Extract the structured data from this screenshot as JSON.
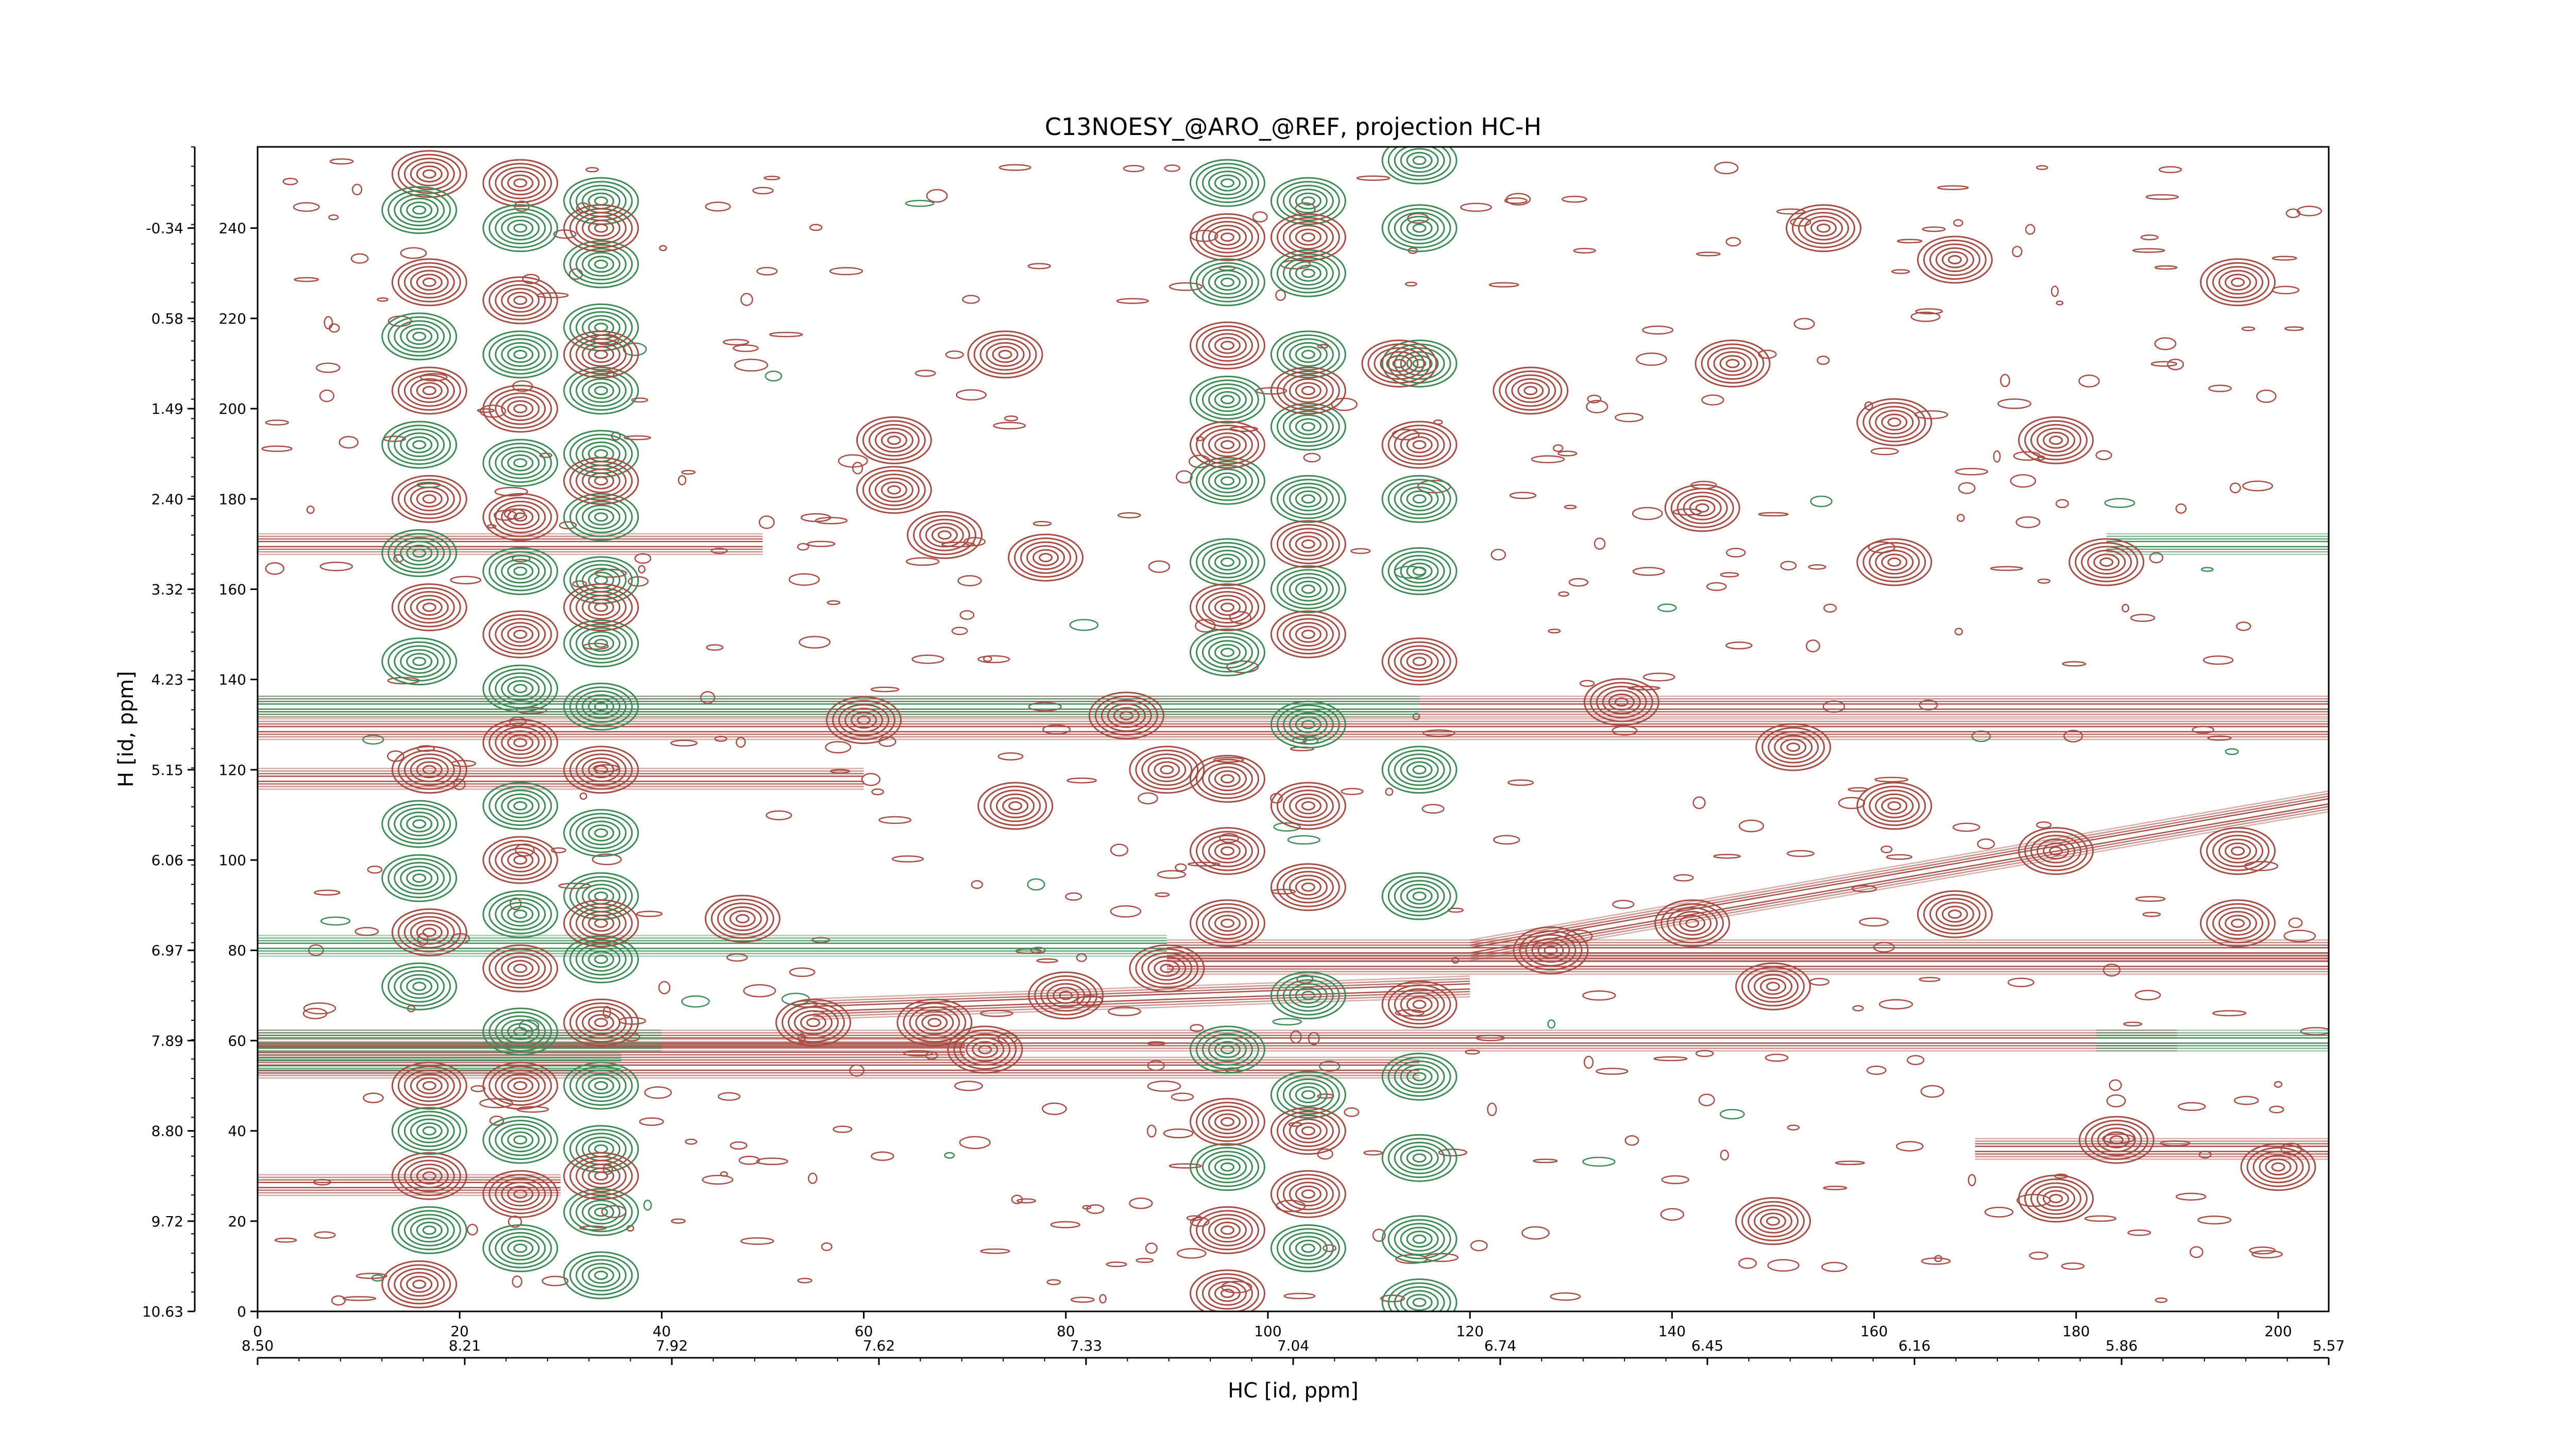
{
  "chart_data": {
    "type": "contour",
    "title": "C13NOESY_@ARO_@REF, projection HC-H",
    "xlabel": "HC [id, ppm]",
    "ylabel": "H [id, ppm]",
    "x_point_range": [
      0,
      205
    ],
    "y_point_range": [
      0,
      258
    ],
    "x_ticks": [
      0,
      20,
      40,
      60,
      80,
      100,
      120,
      140,
      160,
      180,
      200
    ],
    "y_ticks": [
      0,
      20,
      40,
      60,
      80,
      100,
      120,
      140,
      160,
      180,
      200,
      220,
      240
    ],
    "x_ppm_labels": [
      "8.50",
      "8.21",
      "7.92",
      "7.62",
      "7.33",
      "7.04",
      "6.74",
      "6.45",
      "6.16",
      "5.86",
      "5.57"
    ],
    "y_ppm_labels": [
      "10.63",
      "9.72",
      "8.80",
      "7.89",
      "6.97",
      "6.06",
      "5.15",
      "4.23",
      "3.32",
      "2.40",
      "1.49",
      "0.58",
      "-0.34"
    ],
    "colors": {
      "positive": "#a84c44",
      "negative": "#3d8c57"
    },
    "peaks": [
      {
        "x": 17,
        "y": 252,
        "sign": "pos"
      },
      {
        "x": 17,
        "y": 228,
        "sign": "pos"
      },
      {
        "x": 17,
        "y": 204,
        "sign": "pos"
      },
      {
        "x": 17,
        "y": 180,
        "sign": "pos"
      },
      {
        "x": 17,
        "y": 156,
        "sign": "pos"
      },
      {
        "x": 17,
        "y": 120,
        "sign": "pos"
      },
      {
        "x": 17,
        "y": 84,
        "sign": "pos"
      },
      {
        "x": 17,
        "y": 50,
        "sign": "pos"
      },
      {
        "x": 17,
        "y": 30,
        "sign": "pos"
      },
      {
        "x": 16,
        "y": 6,
        "sign": "pos"
      },
      {
        "x": 16,
        "y": 244,
        "sign": "neg"
      },
      {
        "x": 16,
        "y": 216,
        "sign": "neg"
      },
      {
        "x": 16,
        "y": 192,
        "sign": "neg"
      },
      {
        "x": 16,
        "y": 168,
        "sign": "neg"
      },
      {
        "x": 16,
        "y": 144,
        "sign": "neg"
      },
      {
        "x": 16,
        "y": 108,
        "sign": "neg"
      },
      {
        "x": 16,
        "y": 96,
        "sign": "neg"
      },
      {
        "x": 16,
        "y": 72,
        "sign": "neg"
      },
      {
        "x": 17,
        "y": 40,
        "sign": "neg"
      },
      {
        "x": 17,
        "y": 18,
        "sign": "neg"
      },
      {
        "x": 26,
        "y": 250,
        "sign": "pos"
      },
      {
        "x": 26,
        "y": 224,
        "sign": "pos"
      },
      {
        "x": 26,
        "y": 200,
        "sign": "pos"
      },
      {
        "x": 26,
        "y": 176,
        "sign": "pos"
      },
      {
        "x": 26,
        "y": 150,
        "sign": "pos"
      },
      {
        "x": 26,
        "y": 126,
        "sign": "pos"
      },
      {
        "x": 26,
        "y": 100,
        "sign": "pos"
      },
      {
        "x": 26,
        "y": 76,
        "sign": "pos"
      },
      {
        "x": 26,
        "y": 50,
        "sign": "pos"
      },
      {
        "x": 26,
        "y": 26,
        "sign": "pos"
      },
      {
        "x": 26,
        "y": 240,
        "sign": "neg"
      },
      {
        "x": 26,
        "y": 212,
        "sign": "neg"
      },
      {
        "x": 26,
        "y": 188,
        "sign": "neg"
      },
      {
        "x": 26,
        "y": 164,
        "sign": "neg"
      },
      {
        "x": 26,
        "y": 138,
        "sign": "neg"
      },
      {
        "x": 26,
        "y": 112,
        "sign": "neg"
      },
      {
        "x": 26,
        "y": 88,
        "sign": "neg"
      },
      {
        "x": 26,
        "y": 62,
        "sign": "neg"
      },
      {
        "x": 26,
        "y": 38,
        "sign": "neg"
      },
      {
        "x": 26,
        "y": 14,
        "sign": "neg"
      },
      {
        "x": 34,
        "y": 246,
        "sign": "neg"
      },
      {
        "x": 34,
        "y": 232,
        "sign": "neg"
      },
      {
        "x": 34,
        "y": 218,
        "sign": "neg"
      },
      {
        "x": 34,
        "y": 204,
        "sign": "neg"
      },
      {
        "x": 34,
        "y": 190,
        "sign": "neg"
      },
      {
        "x": 34,
        "y": 176,
        "sign": "neg"
      },
      {
        "x": 34,
        "y": 162,
        "sign": "neg"
      },
      {
        "x": 34,
        "y": 148,
        "sign": "neg"
      },
      {
        "x": 34,
        "y": 134,
        "sign": "neg"
      },
      {
        "x": 34,
        "y": 106,
        "sign": "neg"
      },
      {
        "x": 34,
        "y": 92,
        "sign": "neg"
      },
      {
        "x": 34,
        "y": 78,
        "sign": "neg"
      },
      {
        "x": 34,
        "y": 50,
        "sign": "neg"
      },
      {
        "x": 34,
        "y": 36,
        "sign": "neg"
      },
      {
        "x": 34,
        "y": 22,
        "sign": "neg"
      },
      {
        "x": 34,
        "y": 8,
        "sign": "neg"
      },
      {
        "x": 34,
        "y": 240,
        "sign": "pos"
      },
      {
        "x": 34,
        "y": 212,
        "sign": "pos"
      },
      {
        "x": 34,
        "y": 184,
        "sign": "pos"
      },
      {
        "x": 34,
        "y": 156,
        "sign": "pos"
      },
      {
        "x": 34,
        "y": 120,
        "sign": "pos"
      },
      {
        "x": 34,
        "y": 86,
        "sign": "pos"
      },
      {
        "x": 34,
        "y": 64,
        "sign": "pos"
      },
      {
        "x": 34,
        "y": 30,
        "sign": "pos"
      },
      {
        "x": 96,
        "y": 250,
        "sign": "neg"
      },
      {
        "x": 96,
        "y": 228,
        "sign": "neg"
      },
      {
        "x": 96,
        "y": 202,
        "sign": "neg"
      },
      {
        "x": 96,
        "y": 184,
        "sign": "neg"
      },
      {
        "x": 96,
        "y": 166,
        "sign": "neg"
      },
      {
        "x": 96,
        "y": 146,
        "sign": "neg"
      },
      {
        "x": 96,
        "y": 58,
        "sign": "neg"
      },
      {
        "x": 96,
        "y": 32,
        "sign": "neg"
      },
      {
        "x": 96,
        "y": 238,
        "sign": "pos"
      },
      {
        "x": 96,
        "y": 214,
        "sign": "pos"
      },
      {
        "x": 96,
        "y": 192,
        "sign": "pos"
      },
      {
        "x": 96,
        "y": 156,
        "sign": "pos"
      },
      {
        "x": 96,
        "y": 118,
        "sign": "pos"
      },
      {
        "x": 96,
        "y": 102,
        "sign": "pos"
      },
      {
        "x": 96,
        "y": 86,
        "sign": "pos"
      },
      {
        "x": 96,
        "y": 42,
        "sign": "pos"
      },
      {
        "x": 96,
        "y": 18,
        "sign": "pos"
      },
      {
        "x": 96,
        "y": 4,
        "sign": "pos"
      },
      {
        "x": 104,
        "y": 246,
        "sign": "neg"
      },
      {
        "x": 104,
        "y": 230,
        "sign": "neg"
      },
      {
        "x": 104,
        "y": 212,
        "sign": "neg"
      },
      {
        "x": 104,
        "y": 196,
        "sign": "neg"
      },
      {
        "x": 104,
        "y": 180,
        "sign": "neg"
      },
      {
        "x": 104,
        "y": 160,
        "sign": "neg"
      },
      {
        "x": 104,
        "y": 130,
        "sign": "neg"
      },
      {
        "x": 104,
        "y": 70,
        "sign": "neg"
      },
      {
        "x": 104,
        "y": 48,
        "sign": "neg"
      },
      {
        "x": 104,
        "y": 14,
        "sign": "neg"
      },
      {
        "x": 104,
        "y": 238,
        "sign": "pos"
      },
      {
        "x": 104,
        "y": 204,
        "sign": "pos"
      },
      {
        "x": 104,
        "y": 170,
        "sign": "pos"
      },
      {
        "x": 104,
        "y": 150,
        "sign": "pos"
      },
      {
        "x": 104,
        "y": 112,
        "sign": "pos"
      },
      {
        "x": 104,
        "y": 94,
        "sign": "pos"
      },
      {
        "x": 104,
        "y": 40,
        "sign": "pos"
      },
      {
        "x": 104,
        "y": 26,
        "sign": "pos"
      },
      {
        "x": 115,
        "y": 255,
        "sign": "neg"
      },
      {
        "x": 115,
        "y": 240,
        "sign": "neg"
      },
      {
        "x": 115,
        "y": 210,
        "sign": "neg"
      },
      {
        "x": 115,
        "y": 180,
        "sign": "neg"
      },
      {
        "x": 115,
        "y": 164,
        "sign": "neg"
      },
      {
        "x": 115,
        "y": 120,
        "sign": "neg"
      },
      {
        "x": 115,
        "y": 92,
        "sign": "neg"
      },
      {
        "x": 115,
        "y": 52,
        "sign": "neg"
      },
      {
        "x": 115,
        "y": 34,
        "sign": "neg"
      },
      {
        "x": 115,
        "y": 16,
        "sign": "neg"
      },
      {
        "x": 115,
        "y": 2,
        "sign": "neg"
      },
      {
        "x": 115,
        "y": 192,
        "sign": "pos"
      },
      {
        "x": 115,
        "y": 144,
        "sign": "pos"
      },
      {
        "x": 115,
        "y": 68,
        "sign": "pos"
      },
      {
        "x": 74,
        "y": 212,
        "sign": "pos"
      },
      {
        "x": 63,
        "y": 193,
        "sign": "pos"
      },
      {
        "x": 63,
        "y": 182,
        "sign": "pos"
      },
      {
        "x": 68,
        "y": 172,
        "sign": "pos"
      },
      {
        "x": 78,
        "y": 167,
        "sign": "pos"
      },
      {
        "x": 75,
        "y": 112,
        "sign": "pos"
      },
      {
        "x": 55,
        "y": 64,
        "sign": "pos"
      },
      {
        "x": 67,
        "y": 64,
        "sign": "pos"
      },
      {
        "x": 80,
        "y": 70,
        "sign": "pos"
      },
      {
        "x": 90,
        "y": 76,
        "sign": "pos"
      },
      {
        "x": 113,
        "y": 210,
        "sign": "pos"
      },
      {
        "x": 126,
        "y": 204,
        "sign": "pos"
      },
      {
        "x": 146,
        "y": 210,
        "sign": "pos"
      },
      {
        "x": 162,
        "y": 197,
        "sign": "pos"
      },
      {
        "x": 178,
        "y": 193,
        "sign": "pos"
      },
      {
        "x": 196,
        "y": 228,
        "sign": "pos"
      },
      {
        "x": 168,
        "y": 233,
        "sign": "pos"
      },
      {
        "x": 162,
        "y": 166,
        "sign": "pos"
      },
      {
        "x": 183,
        "y": 166,
        "sign": "pos"
      },
      {
        "x": 162,
        "y": 112,
        "sign": "pos"
      },
      {
        "x": 196,
        "y": 102,
        "sign": "pos"
      },
      {
        "x": 178,
        "y": 102,
        "sign": "pos"
      },
      {
        "x": 168,
        "y": 88,
        "sign": "pos"
      },
      {
        "x": 196,
        "y": 86,
        "sign": "pos"
      },
      {
        "x": 150,
        "y": 72,
        "sign": "pos"
      },
      {
        "x": 184,
        "y": 38,
        "sign": "pos"
      },
      {
        "x": 200,
        "y": 32,
        "sign": "pos"
      },
      {
        "x": 178,
        "y": 25,
        "sign": "pos"
      },
      {
        "x": 150,
        "y": 20,
        "sign": "pos"
      },
      {
        "x": 48,
        "y": 87,
        "sign": "pos"
      },
      {
        "x": 72,
        "y": 58,
        "sign": "pos"
      },
      {
        "x": 142,
        "y": 86,
        "sign": "pos"
      },
      {
        "x": 128,
        "y": 80,
        "sign": "pos"
      },
      {
        "x": 135,
        "y": 135,
        "sign": "pos"
      },
      {
        "x": 152,
        "y": 125,
        "sign": "pos"
      },
      {
        "x": 143,
        "y": 178,
        "sign": "pos"
      },
      {
        "x": 60,
        "y": 131,
        "sign": "pos"
      },
      {
        "x": 86,
        "y": 132,
        "sign": "pos"
      },
      {
        "x": 90,
        "y": 120,
        "sign": "pos"
      },
      {
        "x": 155,
        "y": 240,
        "sign": "pos"
      }
    ],
    "ridges": [
      {
        "x": [
          0,
          205
        ],
        "y": [
          134,
          134
        ],
        "sign": "pos"
      },
      {
        "x": [
          0,
          115
        ],
        "y": [
          134,
          134
        ],
        "sign": "neg"
      },
      {
        "x": [
          0,
          205
        ],
        "y": [
          129,
          129
        ],
        "sign": "pos"
      },
      {
        "x": [
          0,
          190
        ],
        "y": [
          60,
          60
        ],
        "sign": "pos"
      },
      {
        "x": [
          0,
          70
        ],
        "y": [
          58,
          58
        ],
        "sign": "pos"
      },
      {
        "x": [
          0,
          115
        ],
        "y": [
          54,
          54
        ],
        "sign": "pos"
      },
      {
        "x": [
          0,
          40
        ],
        "y": [
          60,
          60
        ],
        "sign": "neg"
      },
      {
        "x": [
          0,
          36
        ],
        "y": [
          55,
          55
        ],
        "sign": "neg"
      },
      {
        "x": [
          0,
          90
        ],
        "y": [
          81,
          81
        ],
        "sign": "neg"
      },
      {
        "x": [
          90,
          205
        ],
        "y": [
          80,
          80
        ],
        "sign": "pos"
      },
      {
        "x": [
          90,
          205
        ],
        "y": [
          77,
          77
        ],
        "sign": "pos"
      },
      {
        "x": [
          55,
          120
        ],
        "y": [
          67,
          72
        ],
        "sign": "pos"
      },
      {
        "x": [
          120,
          205
        ],
        "y": [
          80,
          113
        ],
        "sign": "pos"
      },
      {
        "x": [
          0,
          30
        ],
        "y": [
          28,
          28
        ],
        "sign": "pos"
      },
      {
        "x": [
          170,
          205
        ],
        "y": [
          36,
          36
        ],
        "sign": "pos"
      },
      {
        "x": [
          0,
          60
        ],
        "y": [
          118,
          118
        ],
        "sign": "pos"
      },
      {
        "x": [
          0,
          50
        ],
        "y": [
          170,
          170
        ],
        "sign": "pos"
      },
      {
        "x": [
          183,
          205
        ],
        "y": [
          170,
          170
        ],
        "sign": "neg"
      },
      {
        "x": [
          182,
          205
        ],
        "y": [
          60,
          60
        ],
        "sign": "neg"
      }
    ]
  }
}
